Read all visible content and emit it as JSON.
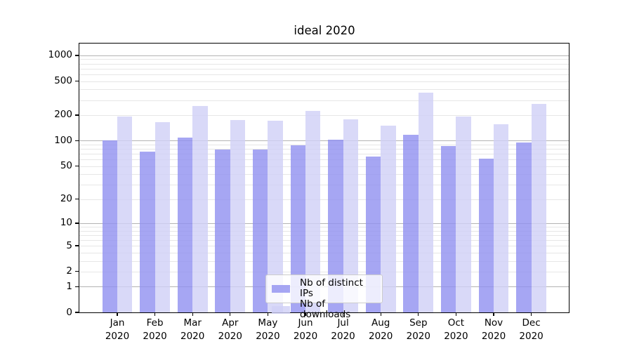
{
  "title": "ideal 2020",
  "chart_data": {
    "type": "bar",
    "title": "ideal 2020",
    "categories": [
      "Jan",
      "Feb",
      "Mar",
      "Apr",
      "May",
      "Jun",
      "Jul",
      "Aug",
      "Sep",
      "Oct",
      "Nov",
      "Dec"
    ],
    "category_year": "2020",
    "series": [
      {
        "name": "Nb of distinct IPs",
        "color": "#9090f0",
        "alpha": 0.8,
        "values": [
          101,
          74,
          109,
          78,
          78,
          89,
          103,
          65,
          118,
          86,
          61,
          95
        ]
      },
      {
        "name": "Nb of downloads",
        "color": "#d0d0f6",
        "alpha": 0.8,
        "values": [
          192,
          166,
          254,
          174,
          170,
          222,
          178,
          151,
          365,
          191,
          155,
          272
        ]
      }
    ],
    "yscale": "log1p",
    "yticks": [
      0,
      1,
      2,
      5,
      10,
      20,
      50,
      100,
      200,
      500,
      1000
    ],
    "ylim": [
      0,
      1374
    ],
    "grid": "both",
    "legend_position": "lower-center"
  },
  "colors": {
    "grid_major": "#b3b3b3",
    "grid_minor": "#e6e6e6",
    "spine": "#000000",
    "legend_border": "#cccccc",
    "text": "#000000"
  }
}
